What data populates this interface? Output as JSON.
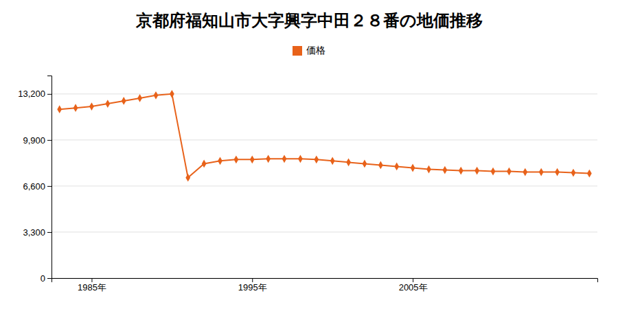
{
  "chart_data": {
    "type": "line",
    "title": "京都府福知山市大字興字中田２８番の地価推移",
    "x": [
      1983,
      1984,
      1985,
      1986,
      1987,
      1988,
      1989,
      1990,
      1991,
      1992,
      1993,
      1994,
      1995,
      1996,
      1997,
      1998,
      1999,
      2000,
      2001,
      2002,
      2003,
      2004,
      2005,
      2006,
      2007,
      2008,
      2009,
      2010,
      2011,
      2012,
      2013,
      2014,
      2015,
      2016
    ],
    "series": [
      {
        "name": "価格",
        "color": "#e8621a",
        "marker": "diamond",
        "values": [
          12100,
          12200,
          12300,
          12500,
          12700,
          12900,
          13100,
          13200,
          7200,
          8200,
          8400,
          8500,
          8500,
          8550,
          8550,
          8550,
          8500,
          8400,
          8300,
          8200,
          8100,
          8000,
          7900,
          7800,
          7750,
          7700,
          7700,
          7650,
          7650,
          7600,
          7600,
          7600,
          7550,
          7500
        ]
      }
    ],
    "xlim": [
      1982.5,
      2016.5
    ],
    "xticks": [
      {
        "value": 1985,
        "label": "1985年"
      },
      {
        "value": 1995,
        "label": "1995年"
      },
      {
        "value": 2005,
        "label": "2005年"
      }
    ],
    "ylim": [
      0,
      14520
    ],
    "yticks": [
      0,
      {
        "value": 3300,
        "label": "3,300"
      },
      {
        "value": 6600,
        "label": "6,600"
      },
      {
        "value": 9900,
        "label": "9,900"
      },
      {
        "value": 13200,
        "label": "13,200"
      }
    ],
    "grid": true,
    "legend": "top"
  }
}
